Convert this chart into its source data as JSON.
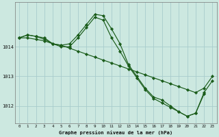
{
  "title": "Graphe pression niveau de la mer (hPa)",
  "bg_color": "#cce8e0",
  "grid_color": "#a8cccc",
  "line_color": "#1a5c1a",
  "xlim": [
    -0.5,
    23.5
  ],
  "ylim": [
    1011.4,
    1015.5
  ],
  "yticks": [
    1012,
    1013,
    1014
  ],
  "xticks": [
    0,
    1,
    2,
    3,
    4,
    5,
    6,
    7,
    8,
    9,
    10,
    11,
    12,
    13,
    14,
    15,
    16,
    17,
    18,
    19,
    20,
    21,
    22,
    23
  ],
  "series": [
    {
      "x": [
        0,
        1,
        2,
        3,
        4,
        5,
        6,
        7,
        8,
        9,
        10,
        11,
        12,
        13,
        14,
        15,
        16,
        17,
        18,
        19,
        20,
        21,
        22
      ],
      "y": [
        1014.3,
        1014.4,
        1014.35,
        1014.3,
        1014.1,
        1014.05,
        1014.1,
        1014.4,
        1014.75,
        1015.1,
        1015.05,
        1014.6,
        1014.1,
        1013.4,
        1013.0,
        1012.6,
        1012.3,
        1012.2,
        1012.0,
        1011.8,
        1011.65,
        1011.75,
        1012.4
      ]
    },
    {
      "x": [
        0,
        1,
        2,
        3,
        4,
        5,
        6,
        7,
        8,
        9,
        10,
        11,
        12,
        13,
        14,
        15,
        16,
        17,
        18,
        19,
        20,
        21,
        22,
        23
      ],
      "y": [
        1014.3,
        1014.4,
        1014.35,
        1014.25,
        1014.1,
        1014.0,
        1014.0,
        1014.3,
        1014.65,
        1015.0,
        1014.9,
        1014.3,
        1013.85,
        1013.35,
        1012.95,
        1012.55,
        1012.25,
        1012.1,
        1011.95,
        1011.8,
        1011.65,
        1011.75,
        1012.45,
        1012.85
      ]
    },
    {
      "x": [
        0,
        1,
        2,
        3,
        4,
        5,
        6,
        7,
        8,
        9,
        10,
        11,
        12,
        13,
        14,
        15,
        16,
        17,
        18,
        19,
        20,
        21,
        22,
        23
      ],
      "y": [
        1014.3,
        1014.3,
        1014.25,
        1014.2,
        1014.1,
        1014.05,
        1013.95,
        1013.85,
        1013.75,
        1013.65,
        1013.55,
        1013.45,
        1013.35,
        1013.25,
        1013.15,
        1013.05,
        1012.95,
        1012.85,
        1012.75,
        1012.65,
        1012.55,
        1012.45,
        1012.6,
        1013.0
      ]
    }
  ]
}
